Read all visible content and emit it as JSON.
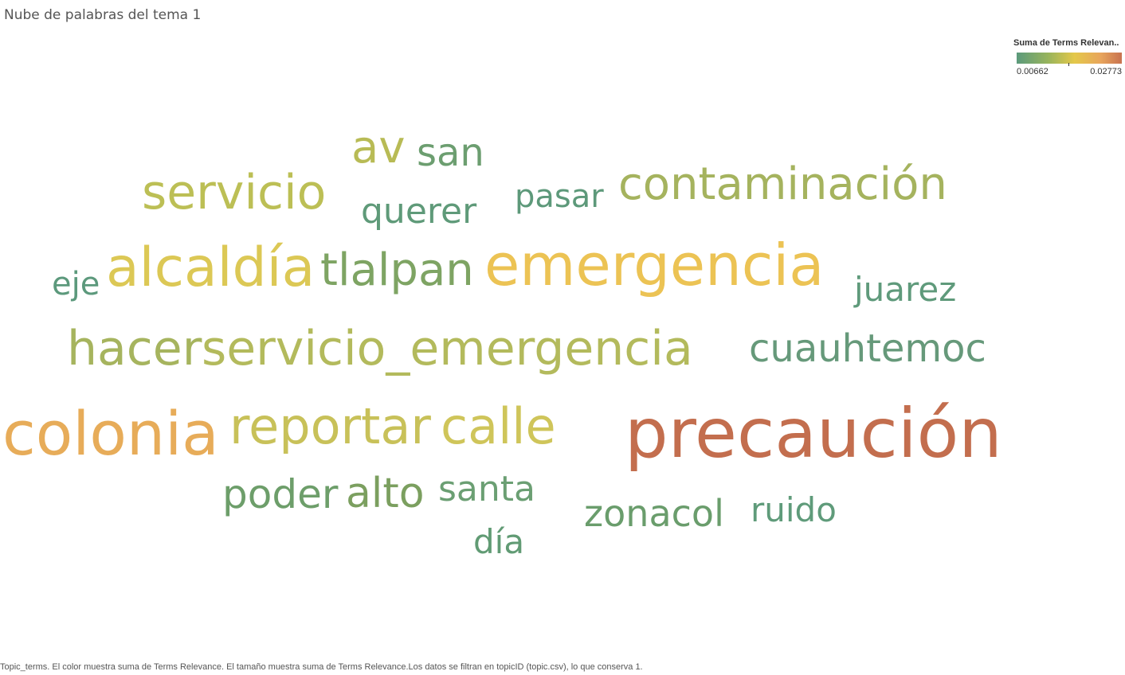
{
  "title": "Nube de palabras del tema 1",
  "legend": {
    "title": "Suma de Terms Relevan..",
    "min_label": "0.00662",
    "max_label": "0.02773",
    "colors": [
      "#5b9a7c",
      "#98b45c",
      "#e4c84a",
      "#e8a55c",
      "#c8724f"
    ]
  },
  "chart_data": {
    "type": "wordcloud",
    "title": "Nube de palabras del tema 1",
    "measure": "Suma de Terms Relevance",
    "color_range": [
      0.00662,
      0.02773
    ],
    "words": [
      {
        "text": "precaución",
        "value": 0.02773,
        "color": "#c36e4e"
      },
      {
        "text": "colonia",
        "value": 0.0235,
        "color": "#e7ac59"
      },
      {
        "text": "emergencia",
        "value": 0.0215,
        "color": "#ecc354"
      },
      {
        "text": "alcaldía",
        "value": 0.0185,
        "color": "#dcc855"
      },
      {
        "text": "reportar",
        "value": 0.017,
        "color": "#c8c159"
      },
      {
        "text": "calle",
        "value": 0.017,
        "color": "#cfc55a"
      },
      {
        "text": "hacer",
        "value": 0.015,
        "color": "#a6b45e"
      },
      {
        "text": "servicio_emergencia",
        "value": 0.015,
        "color": "#b3ba5c"
      },
      {
        "text": "servicio",
        "value": 0.0155,
        "color": "#bcbf55"
      },
      {
        "text": "contaminación",
        "value": 0.014,
        "color": "#a5b35e"
      },
      {
        "text": "av",
        "value": 0.013,
        "color": "#b8bb55"
      },
      {
        "text": "tlalpan",
        "value": 0.0125,
        "color": "#7ea463"
      },
      {
        "text": "alto",
        "value": 0.011,
        "color": "#7b9f5f"
      },
      {
        "text": "cuauhtemoc",
        "value": 0.01,
        "color": "#66997a"
      },
      {
        "text": "zonacol",
        "value": 0.0095,
        "color": "#6a9d6c"
      },
      {
        "text": "poder",
        "value": 0.009,
        "color": "#6d9e6a"
      },
      {
        "text": "san",
        "value": 0.009,
        "color": "#6c9e70"
      },
      {
        "text": "santa",
        "value": 0.0085,
        "color": "#6b9f73"
      },
      {
        "text": "querer",
        "value": 0.008,
        "color": "#5f9a79"
      },
      {
        "text": "pasar",
        "value": 0.008,
        "color": "#5d997a"
      },
      {
        "text": "ruido",
        "value": 0.008,
        "color": "#5f9b7a"
      },
      {
        "text": "día",
        "value": 0.008,
        "color": "#619b74"
      },
      {
        "text": "juarez",
        "value": 0.0075,
        "color": "#5f9a7b"
      },
      {
        "text": "eje",
        "value": 0.007,
        "color": "#5c997c"
      }
    ]
  },
  "caption": "Topic_terms. El color muestra suma de Terms Relevance. El tamaño muestra suma de Terms Relevance.Los datos se filtran en topicID (topic.csv), lo que conserva 1."
}
